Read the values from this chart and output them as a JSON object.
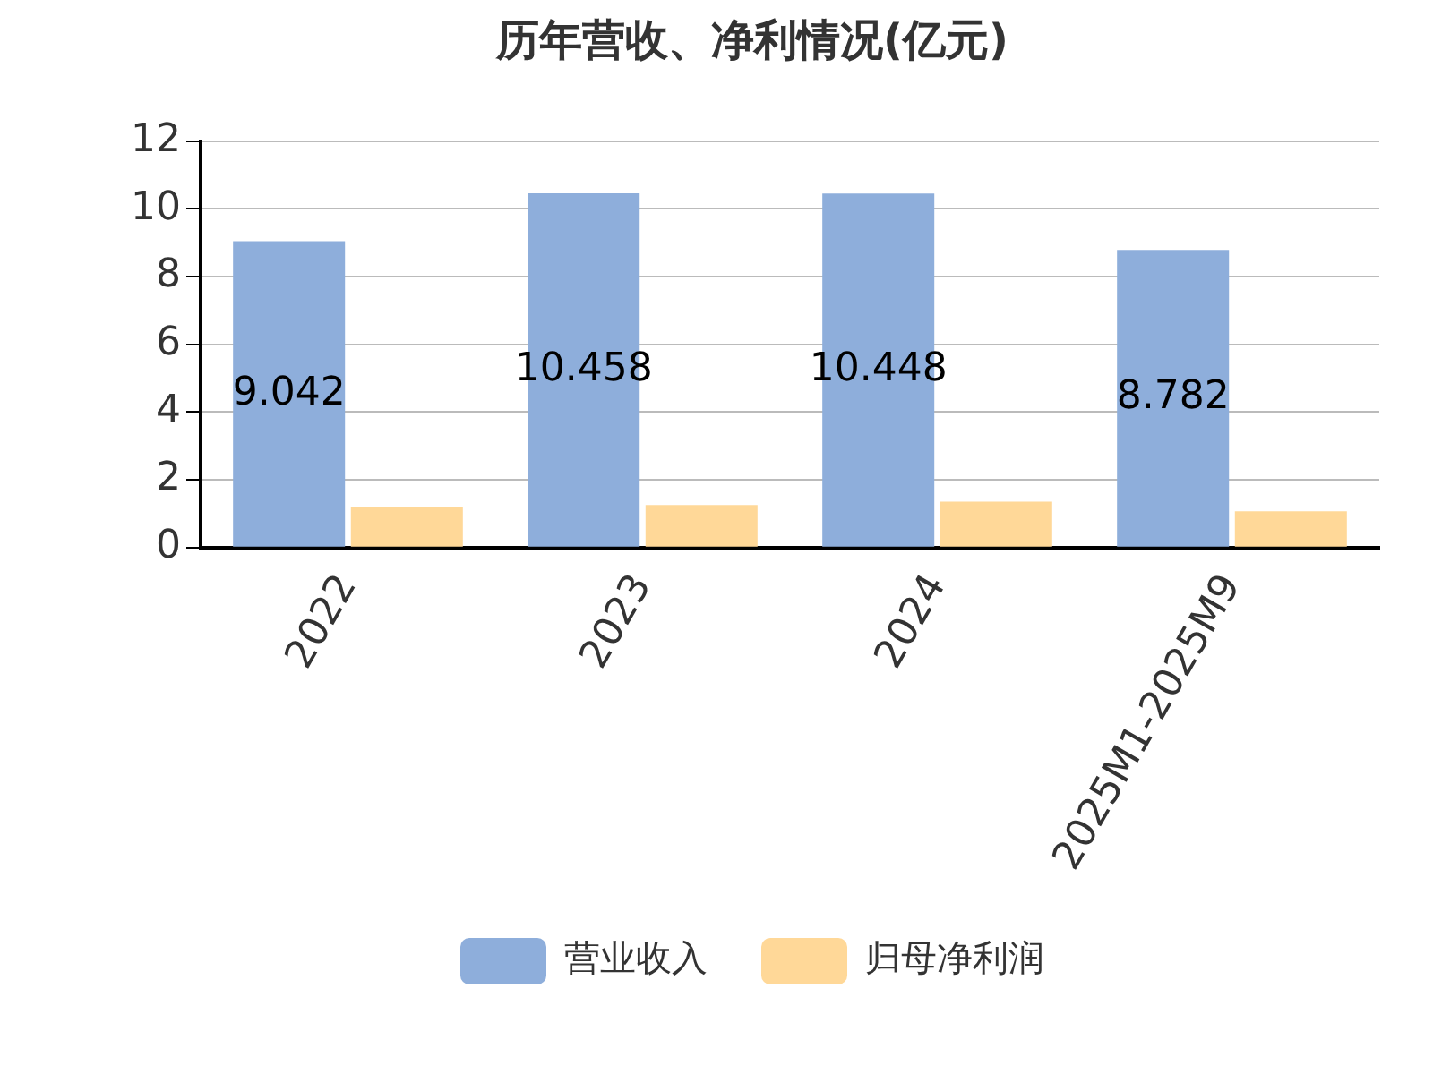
{
  "chart_data": {
    "type": "bar",
    "title": "历年营收、净利情况(亿元)",
    "categories": [
      "2022",
      "2023",
      "2024",
      "2025M1-2025M9"
    ],
    "series": [
      {
        "name": "营业收入",
        "color": "#8eaedb",
        "values": [
          9.042,
          10.458,
          10.448,
          8.782
        ],
        "value_labels": [
          "9.042",
          "10.458",
          "10.448",
          "8.782"
        ]
      },
      {
        "name": "归母净利润",
        "color": "#ffd898",
        "values": [
          1.2,
          1.25,
          1.35,
          1.07
        ]
      }
    ],
    "ylim": [
      0,
      12
    ],
    "yticks": [
      0,
      2,
      4,
      6,
      8,
      10,
      12
    ],
    "grid": "y",
    "legend": "bottom"
  }
}
